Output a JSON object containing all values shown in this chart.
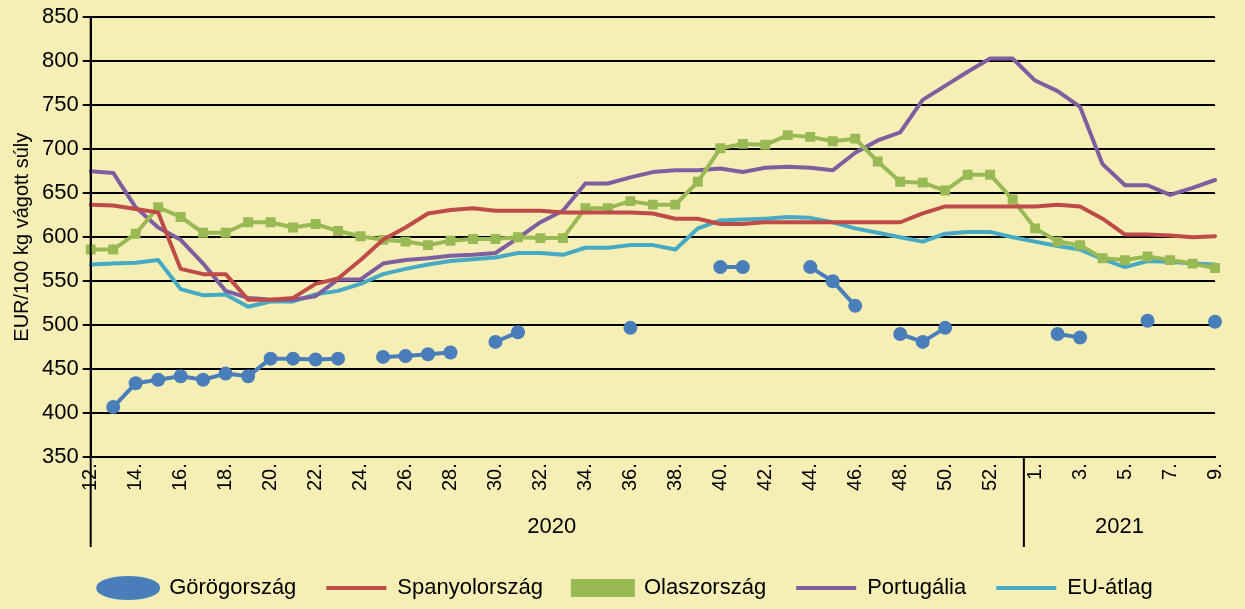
{
  "chart_data": {
    "type": "line",
    "ylabel": "EUR/100 kg vágott súly",
    "categories": [
      "12.",
      null,
      "14.",
      null,
      "16.",
      null,
      "18.",
      null,
      "20.",
      null,
      "22.",
      null,
      "24.",
      null,
      "26.",
      null,
      "28.",
      null,
      "30.",
      null,
      "32.",
      null,
      "34.",
      null,
      "36.",
      null,
      "38.",
      null,
      "40.",
      null,
      "42.",
      null,
      "44.",
      null,
      "46.",
      null,
      "48.",
      null,
      "50.",
      null,
      "52.",
      null,
      "1.",
      null,
      "3.",
      null,
      "5.",
      null,
      "7.",
      null,
      "9."
    ],
    "series": [
      {
        "name": "Görögország",
        "color": "#4a7ebb",
        "marker": "circle",
        "values": [
          null,
          407,
          434,
          438,
          442,
          438,
          445,
          442,
          462,
          462,
          461,
          462,
          null,
          464,
          465,
          467,
          469,
          null,
          481,
          492,
          null,
          null,
          null,
          null,
          497,
          null,
          null,
          null,
          566,
          566,
          null,
          null,
          566,
          550,
          522,
          null,
          490,
          481,
          497,
          null,
          null,
          null,
          null,
          490,
          486,
          null,
          null,
          505,
          null,
          null,
          504
        ]
      },
      {
        "name": "Spanyolország",
        "color": "#be4b48",
        "marker": "none",
        "values": [
          637,
          636,
          632,
          628,
          564,
          558,
          558,
          529,
          529,
          531,
          547,
          553,
          574,
          597,
          611,
          627,
          631,
          633,
          630,
          630,
          630,
          628,
          628,
          628,
          628,
          627,
          621,
          621,
          615,
          615,
          617,
          617,
          617,
          617,
          617,
          617,
          617,
          627,
          635,
          635,
          635,
          635,
          635,
          637,
          635,
          621,
          603,
          603,
          602,
          600,
          601
        ]
      },
      {
        "name": "Olaszország",
        "color": "#98b954",
        "marker": "square",
        "values": [
          586,
          586,
          604,
          634,
          623,
          605,
          605,
          617,
          617,
          611,
          615,
          607,
          601,
          597,
          595,
          591,
          596,
          598,
          598,
          600,
          599,
          599,
          633,
          633,
          641,
          637,
          637,
          663,
          701,
          706,
          705,
          716,
          714,
          709,
          712,
          686,
          663,
          662,
          653,
          671,
          671,
          643,
          610,
          595,
          591,
          576,
          574,
          578,
          574,
          570,
          565
        ]
      },
      {
        "name": "Portugália",
        "color": "#7d5fa0",
        "marker": "none",
        "values": [
          675,
          673,
          634,
          611,
          597,
          570,
          539,
          531,
          529,
          529,
          533,
          552,
          552,
          570,
          574,
          576,
          579,
          580,
          582,
          599,
          617,
          630,
          661,
          661,
          668,
          674,
          676,
          676,
          678,
          674,
          679,
          680,
          679,
          676,
          696,
          710,
          719,
          756,
          772,
          788,
          803,
          803,
          778,
          766,
          748,
          683,
          659,
          659,
          648,
          656,
          665
        ]
      },
      {
        "name": "EU-átlag",
        "color": "#46aac5",
        "marker": "none",
        "values": [
          569,
          570,
          571,
          574,
          541,
          534,
          535,
          521,
          527,
          527,
          535,
          539,
          547,
          558,
          564,
          569,
          573,
          575,
          577,
          582,
          582,
          580,
          588,
          588,
          591,
          591,
          586,
          610,
          619,
          620,
          621,
          623,
          622,
          617,
          610,
          605,
          600,
          595,
          604,
          606,
          606,
          600,
          595,
          590,
          586,
          575,
          566,
          573,
          572,
          570,
          569
        ]
      }
    ],
    "ylim": [
      350,
      850
    ],
    "yticks": [
      350,
      400,
      450,
      500,
      550,
      600,
      650,
      700,
      750,
      800,
      850
    ],
    "grid": "y",
    "legend": "bottom",
    "annotations": [
      "2020",
      "2021"
    ]
  }
}
